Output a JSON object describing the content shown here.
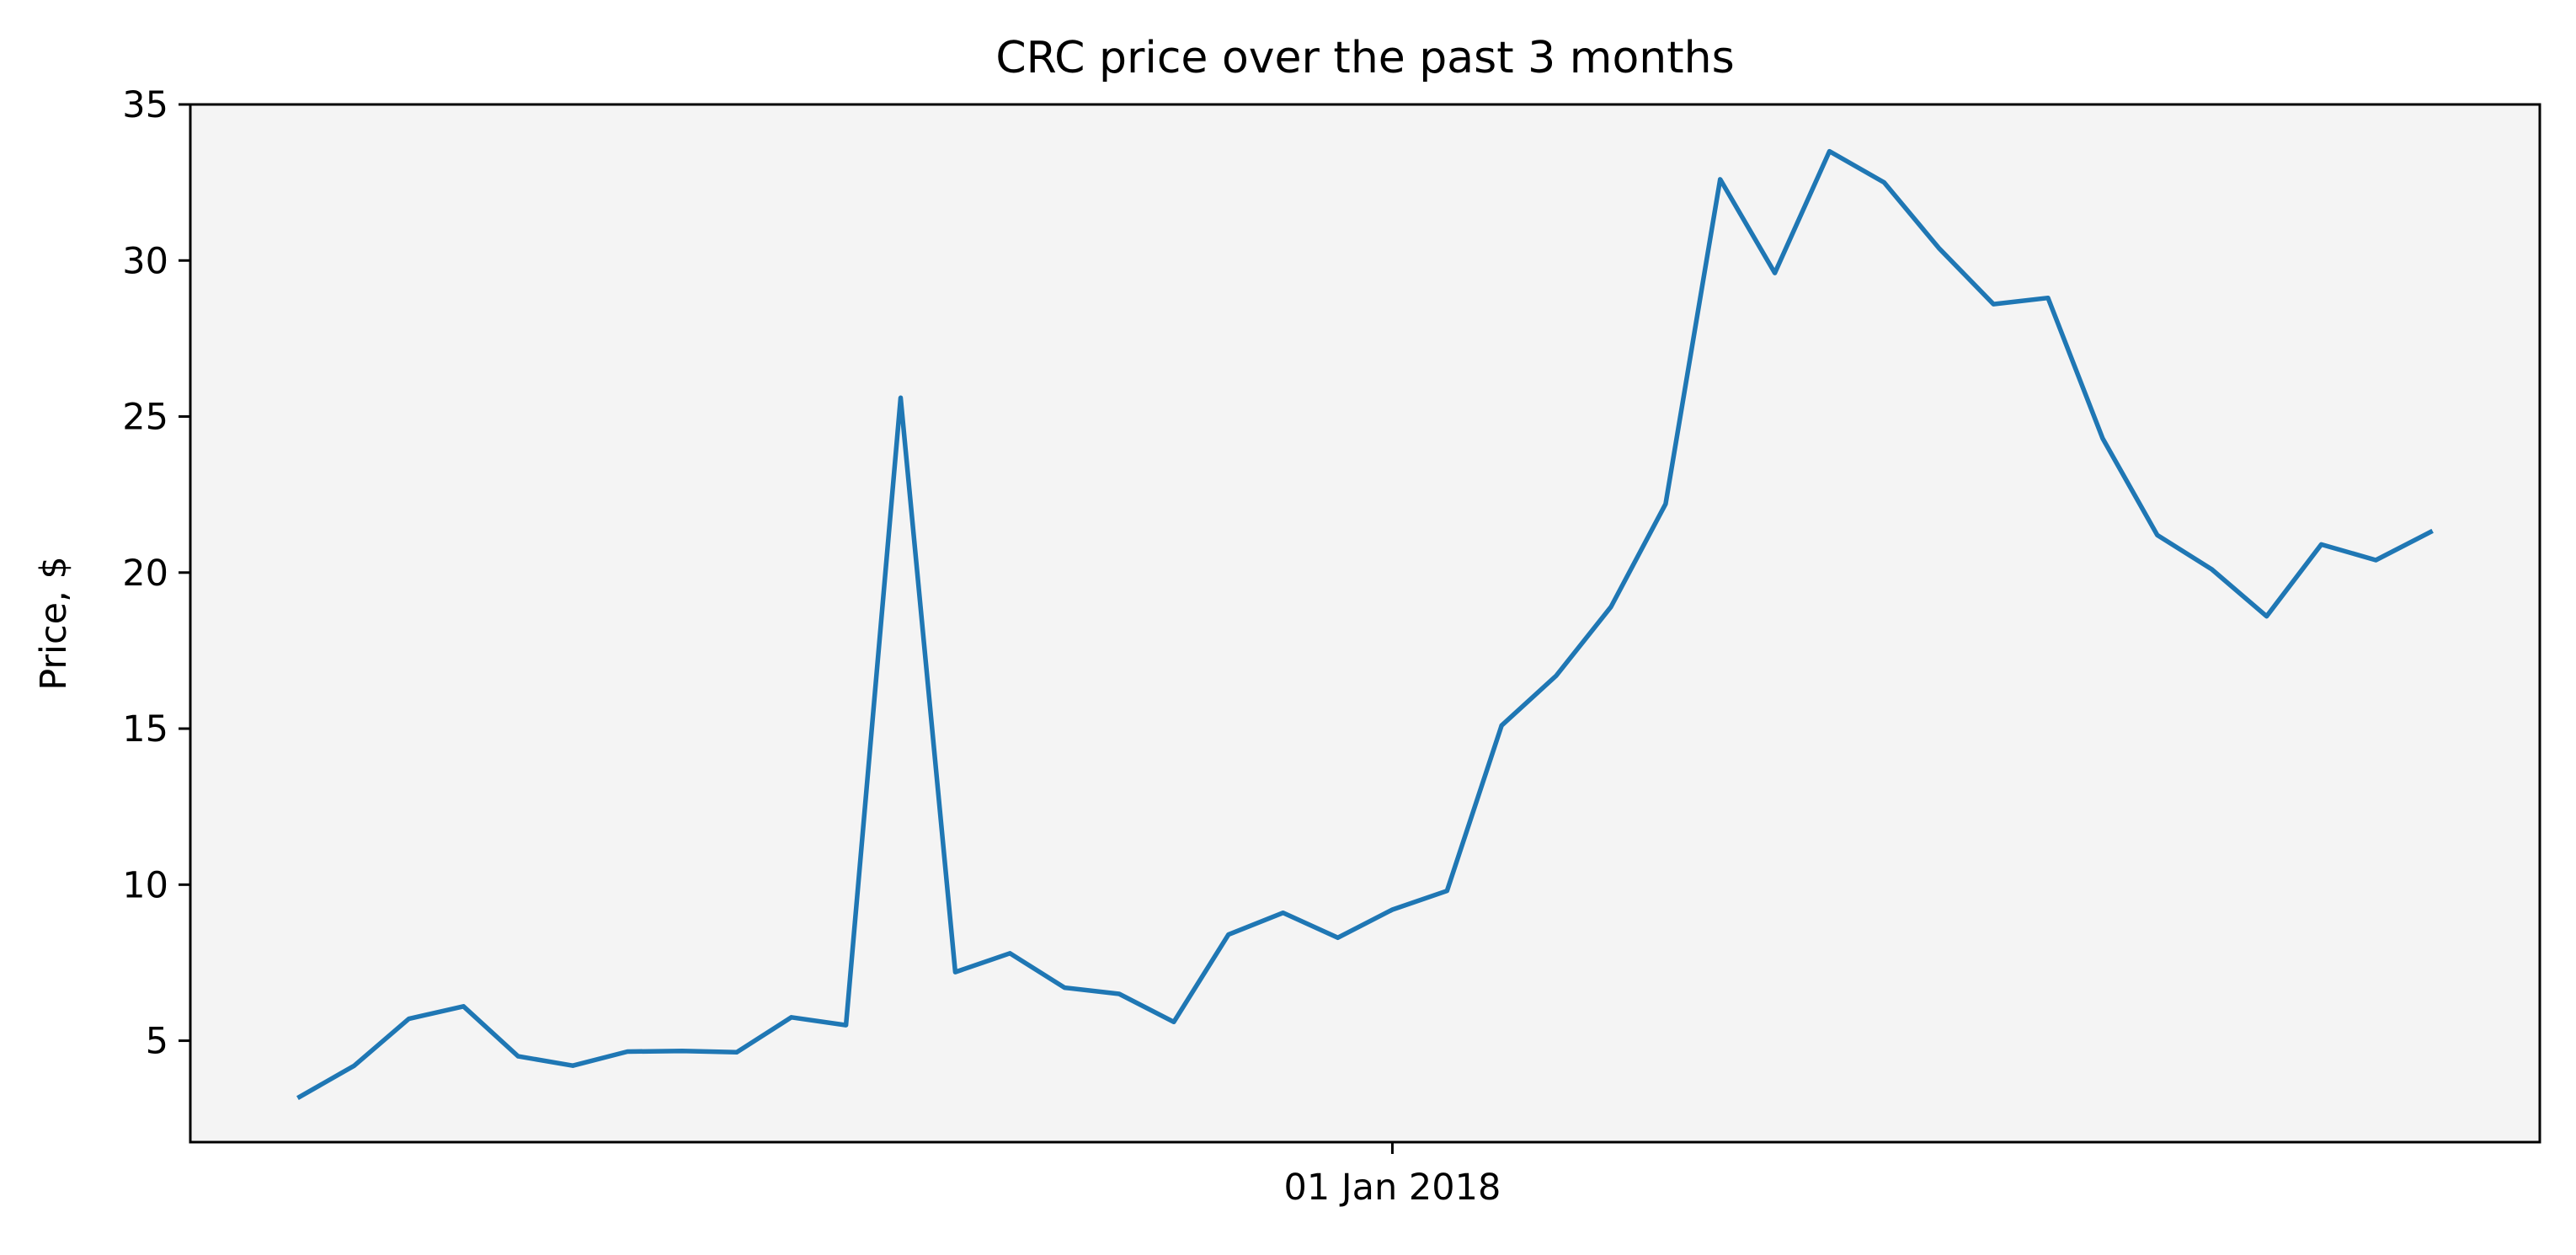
{
  "chart_data": {
    "type": "line",
    "title": "CRC price over the past 3 months",
    "xlabel": "",
    "ylabel": "Price, $",
    "x_tick_labels": [
      {
        "label": "01 Jan 2018",
        "x": 20
      }
    ],
    "y_ticks": [
      5,
      10,
      15,
      20,
      25,
      30,
      35
    ],
    "xlim": [
      -2,
      41
    ],
    "ylim": [
      1.75,
      35
    ],
    "grid": false,
    "background_color": "#f4f4f4",
    "series": [
      {
        "color": "#1f77b4",
        "x": [
          0,
          1,
          2,
          3,
          4,
          5,
          6,
          7,
          8,
          9,
          10,
          11,
          12,
          13,
          14,
          15,
          16,
          17,
          18,
          19,
          20,
          21,
          22,
          23,
          24,
          25,
          26,
          27,
          28,
          29,
          30,
          31,
          32,
          33,
          34,
          35,
          36,
          37,
          38,
          39
        ],
        "values": [
          3.2,
          4.2,
          5.7,
          6.1,
          4.5,
          4.2,
          4.65,
          4.67,
          4.63,
          5.75,
          5.5,
          25.6,
          7.2,
          7.8,
          6.7,
          6.5,
          5.6,
          8.4,
          9.1,
          8.3,
          9.2,
          9.8,
          15.1,
          16.7,
          18.9,
          22.2,
          32.6,
          29.6,
          33.5,
          32.5,
          30.4,
          28.6,
          28.8,
          24.3,
          21.2,
          20.1,
          18.6,
          20.9,
          20.4,
          21.3
        ]
      }
    ]
  }
}
